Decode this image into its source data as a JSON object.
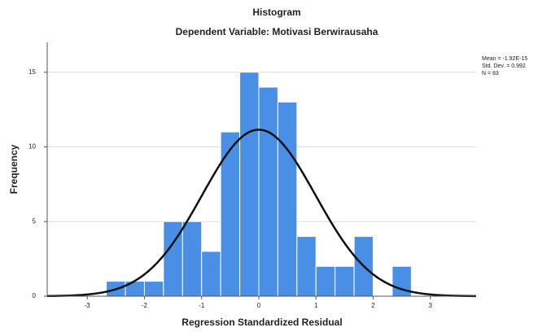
{
  "chart_data": {
    "type": "histogram",
    "title": "Histogram",
    "subtitle": "Dependent Variable: Motivasi Berwirausaha",
    "xlabel": "Regression Standardized Residual",
    "ylabel": "Frequency",
    "bins": [
      -2.667,
      -2.333,
      -2,
      -1.667,
      -1.333,
      -1,
      -0.667,
      -0.333,
      0,
      0.333,
      0.667,
      1,
      1.333,
      1.667,
      2,
      2.333,
      2.667
    ],
    "values": [
      1,
      1,
      1,
      5,
      5,
      3,
      11,
      15,
      14,
      13,
      4,
      2,
      2,
      4,
      0,
      2
    ],
    "color": "#4a8fe6",
    "curve_color": "#111111",
    "xlim": [
      -3.7,
      3.8
    ],
    "ylim": [
      0,
      17
    ],
    "xticks": [
      -3,
      -2,
      -1,
      0,
      1,
      2,
      3
    ],
    "yticks": [
      0,
      5,
      10,
      15
    ],
    "grid": true,
    "stats": [
      {
        "value": -1.92e-15,
        "label": "Mean = -1.92E-15"
      },
      {
        "value": 0.992,
        "label": "Std. Dev. = 0.992"
      },
      {
        "value": 83,
        "label": "N = 83"
      }
    ]
  }
}
